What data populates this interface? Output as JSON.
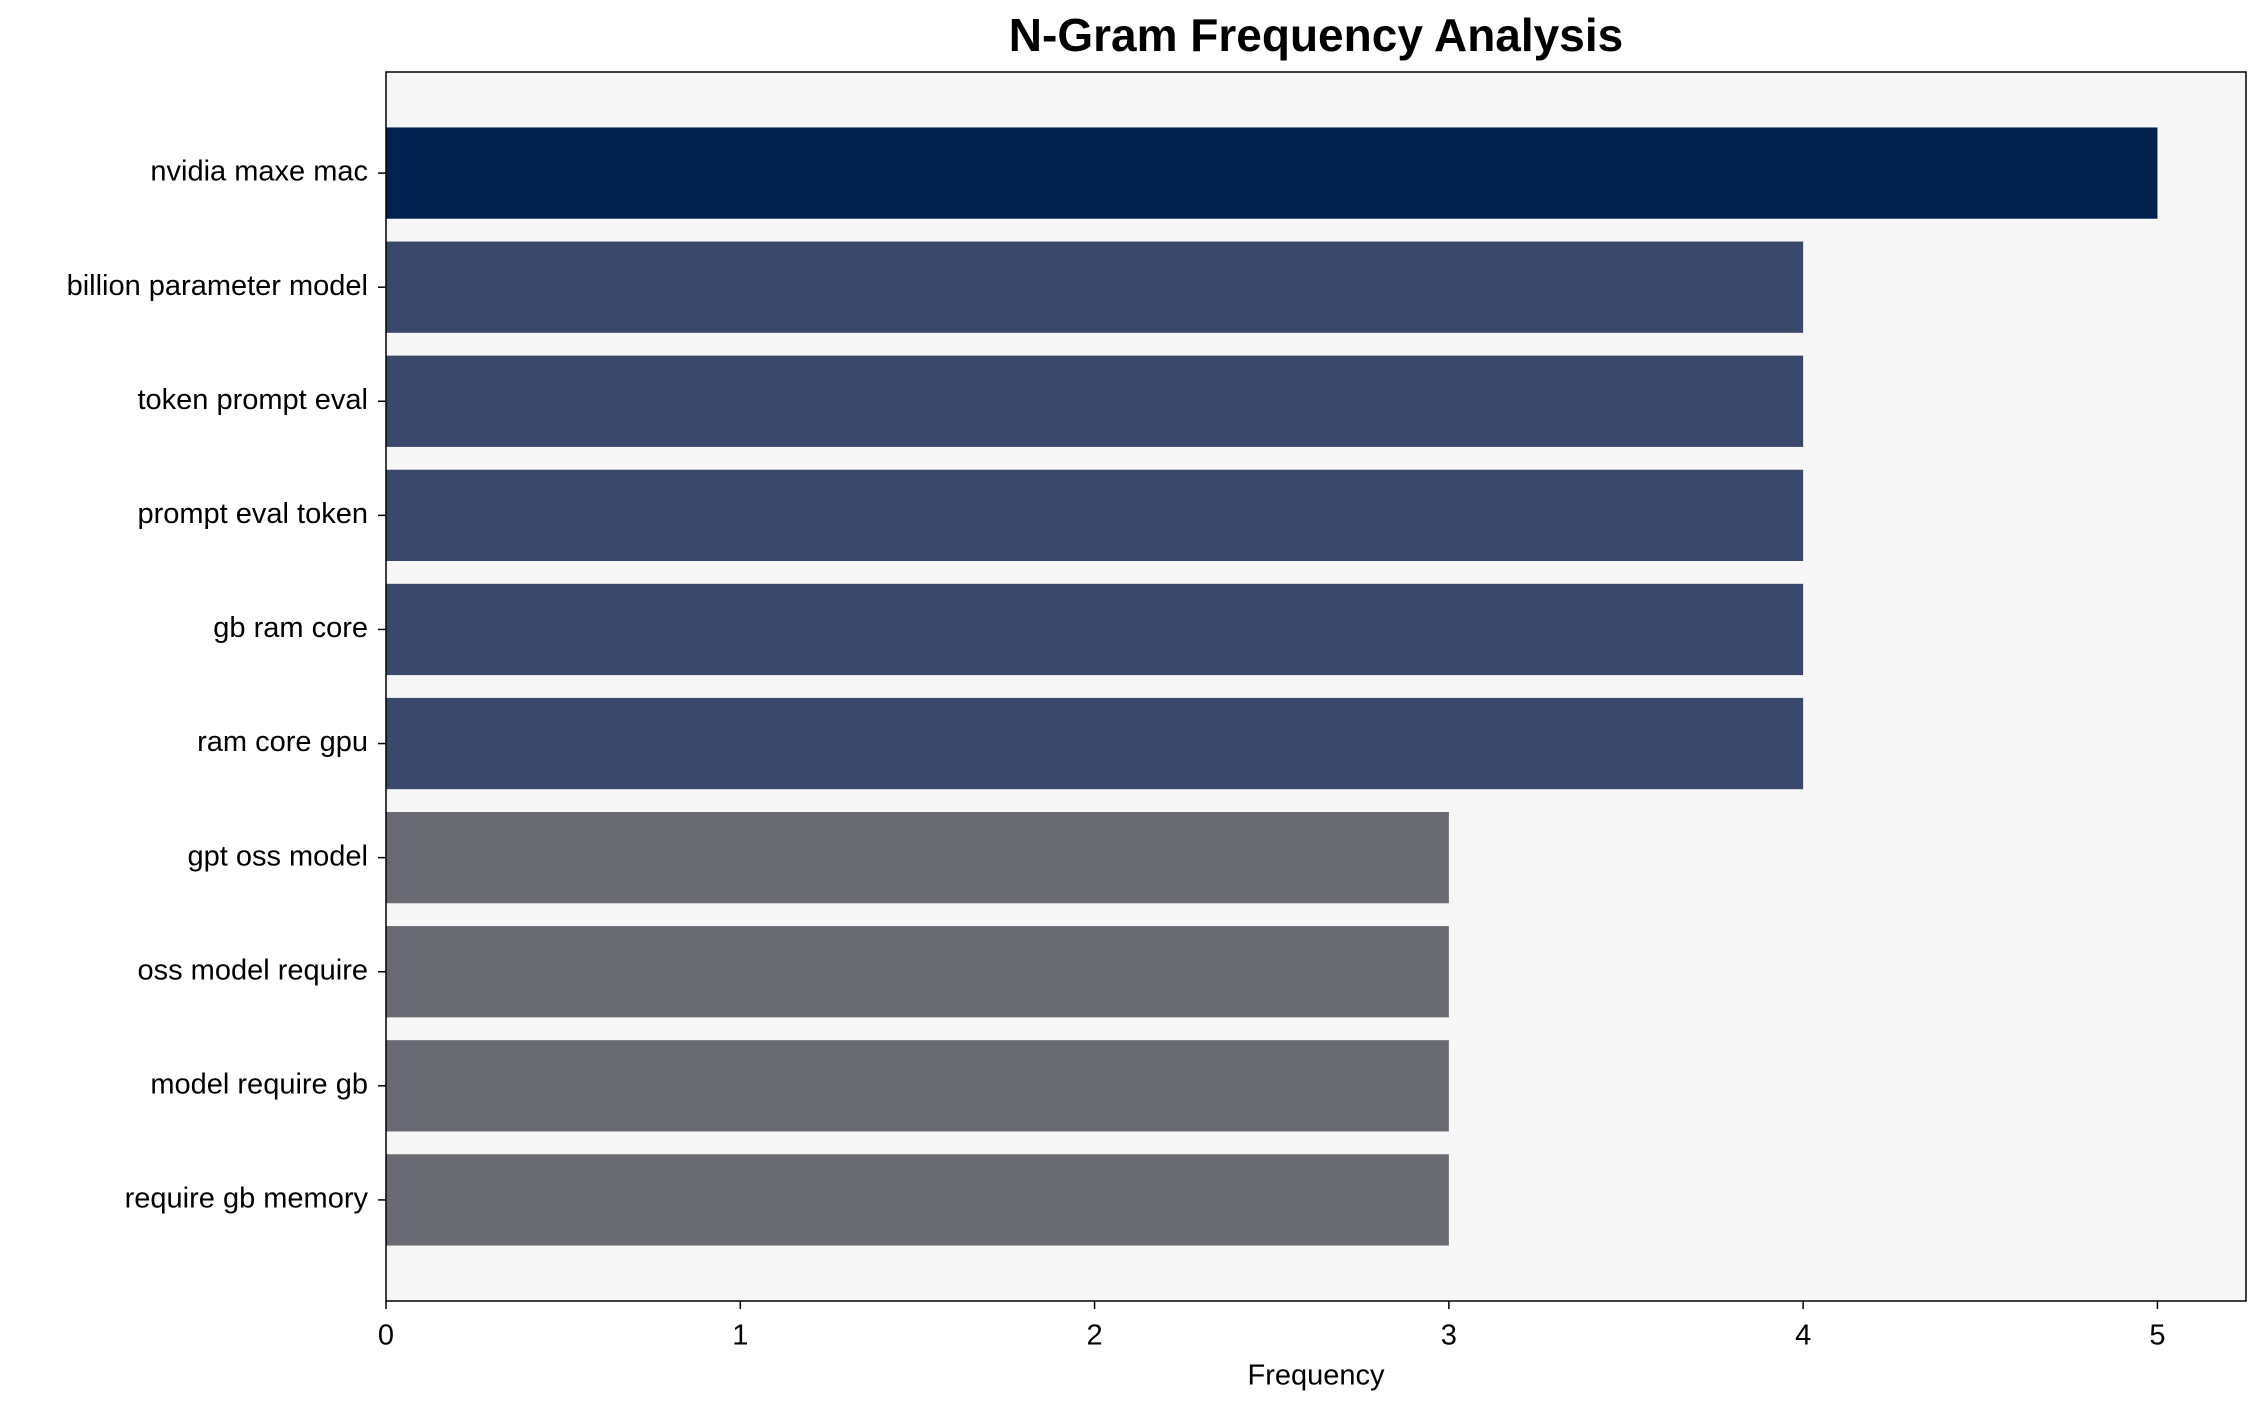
{
  "chart_data": {
    "type": "barh",
    "title": "N-Gram Frequency Analysis",
    "xlabel": "Frequency",
    "categories": [
      "nvidia maxe mac",
      "billion parameter model",
      "token prompt eval",
      "prompt eval token",
      "gb ram core",
      "ram core gpu",
      "gpt oss model",
      "oss model require",
      "model require gb",
      "require gb memory"
    ],
    "values": [
      5,
      4,
      4,
      4,
      4,
      4,
      3,
      3,
      3,
      3
    ],
    "colors": [
      "#00204e",
      "#39486b",
      "#39486b",
      "#39486b",
      "#39486b",
      "#39486b",
      "#696a72",
      "#696a72",
      "#696a72",
      "#696a72"
    ],
    "xlim": [
      0,
      5.25
    ],
    "xticks": [
      0,
      1,
      2,
      3,
      4,
      5
    ],
    "grid": false
  }
}
